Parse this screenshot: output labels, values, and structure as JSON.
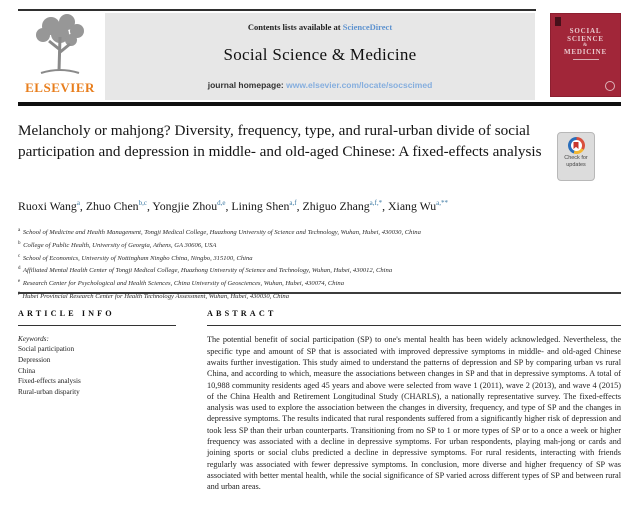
{
  "header": {
    "contents_line_prefix": "Contents lists available at ",
    "sciencedirect_link": "ScienceDirect",
    "journal_title": "Social Science & Medicine",
    "homepage_label": "journal homepage: ",
    "homepage_url": "www.elsevier.com/locate/socscimed",
    "elsevier_logo_text": "ELSEVIER",
    "cover": {
      "line1": "SOCIAL",
      "line2": "SCIENCE",
      "amp": "&",
      "line3": "MEDICINE"
    }
  },
  "article": {
    "title": "Melancholy or mahjong? Diversity, frequency, type, and rural-urban divide of social participation and depression in middle- and old-aged Chinese: A fixed-effects analysis",
    "check_updates_label_line1": "Check for",
    "check_updates_label_line2": "updates",
    "authors": [
      {
        "name": "Ruoxi Wang",
        "sup": "a"
      },
      {
        "name": "Zhuo Chen",
        "sup": "b,c"
      },
      {
        "name": "Yongjie Zhou",
        "sup": "d,e"
      },
      {
        "name": "Lining Shen",
        "sup": "a,f"
      },
      {
        "name": "Zhiguo Zhang",
        "sup": "a,f,*"
      },
      {
        "name": "Xiang Wu",
        "sup": "a,**"
      }
    ],
    "affiliations": [
      {
        "sup": "a",
        "text": "School of Medicine and Health Management, Tongji Medical College, Huazhong University of Science and Technology, Wuhan, Hubei, 430030, China"
      },
      {
        "sup": "b",
        "text": "College of Public Health, University of Georgia, Athens, GA 30606, USA"
      },
      {
        "sup": "c",
        "text": "School of Economics, University of Nottingham Ningbo China, Ningbo, 315100, China"
      },
      {
        "sup": "d",
        "text": "Affiliated Mental Health Center of Tongji Medical College, Huazhong University of Science and Technology, Wuhan, Hubei, 430012, China"
      },
      {
        "sup": "e",
        "text": "Research Center for Psychological and Health Sciences, China University of Geosciences, Wuhan, Hubei, 430074, China"
      },
      {
        "sup": "f",
        "text": "Hubei Provincial Research Center for Health Technology Assessment, Wuhan, Hubei, 430030, China"
      }
    ]
  },
  "article_info": {
    "heading": "ARTICLE INFO",
    "keywords_label": "Keywords:",
    "keywords": [
      "Social participation",
      "Depression",
      "China",
      "Fixed-effects analysis",
      "Rural-urban disparity"
    ]
  },
  "abstract": {
    "heading": "ABSTRACT",
    "text": "The potential benefit of social participation (SP) to one's mental health has been widely acknowledged. Nevertheless, the specific type and amount of SP that is associated with improved depressive symptoms in middle- and old-aged Chinese awaits further investigation. This study aimed to understand the patterns of depression and SP by comparing urban vs rural China, and according to which, measure the associations between changes in SP and that in depressive symptoms. A total of 10,988 community residents aged 45 years and above were selected from wave 1 (2011), wave 2 (2013), and wave 4 (2015) of the China Health and Retirement Longitudinal Study (CHARLS), a nationally representative survey. The fixed-effects analysis was used to explore the association between the changes in diversity, frequency, and type of SP and the changes in depressive symptoms. The results indicated that rural respondents suffered from a significantly higher risk of depression and took less SP than their urban counterparts. Transitioning from no SP to 1 or more types of SP or to a once a week or higher frequency was associated with a decline in depressive symptoms. For urban respondents, playing mah-jong or cards and joining sports or social clubs predicted a decline in depressive symptoms. For rural residents, interacting with friends regularly was associated with fewer depressive symptoms. In conclusion, more diverse and higher frequency of SP was associated with better mental health, while the social significance of SP varied across different types of SP and between rural and urban areas."
  },
  "colors": {
    "link_blue": "#5f93cf",
    "homepage_link_blue": "#85aede",
    "elsevier_orange": "#e87e1d",
    "cover_red": "#a12639",
    "header_box_gray": "#e7e7e7",
    "author_sup_blue": "#3d7aa4"
  }
}
